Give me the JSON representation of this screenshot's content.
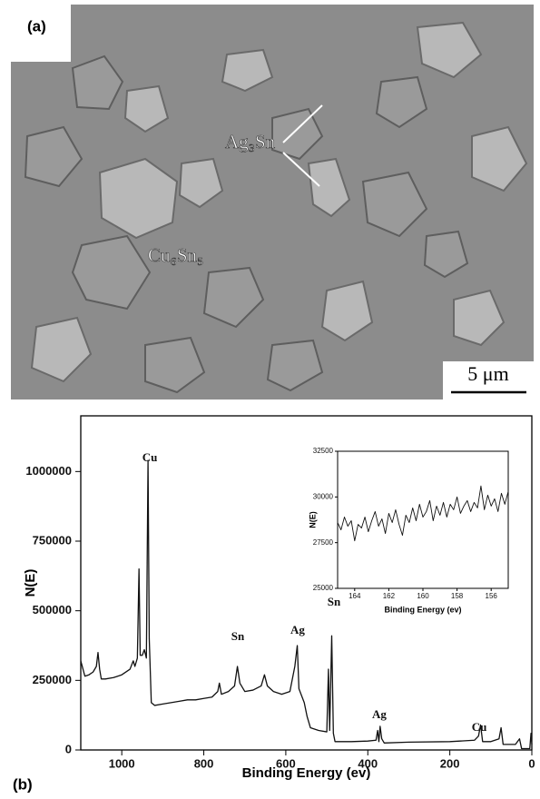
{
  "panel_a": {
    "label": "(a)",
    "annotations": [
      "Ag₃Sn",
      "Cu₆Sn₅"
    ],
    "scale_bar": "5 μm"
  },
  "panel_b": {
    "label": "(b)"
  },
  "chart_data": [
    {
      "type": "line",
      "xlabel": "Binding Energy (ev)",
      "ylabel": "N(E)",
      "xlim": [
        1100,
        0
      ],
      "ylim": [
        0,
        1200000
      ],
      "xticks": [
        1000,
        800,
        600,
        400,
        200,
        0
      ],
      "yticks": [
        0,
        250000,
        500000,
        750000,
        1000000
      ],
      "annotations": [
        "Cu",
        "Sn",
        "Ag",
        "Sn",
        "Ag",
        "Cu"
      ],
      "x": [
        1100,
        1090,
        1080,
        1070,
        1062,
        1058,
        1054,
        1050,
        1040,
        1020,
        1000,
        980,
        972,
        968,
        962,
        958,
        955,
        950,
        945,
        940,
        936,
        933,
        928,
        920,
        900,
        880,
        860,
        840,
        820,
        800,
        780,
        766,
        762,
        757,
        740,
        725,
        718,
        712,
        700,
        680,
        660,
        652,
        645,
        630,
        610,
        590,
        578,
        572,
        568,
        555,
        548,
        540,
        520,
        500,
        496,
        493,
        488,
        484,
        480,
        440,
        400,
        380,
        376,
        373,
        370,
        366,
        360,
        300,
        200,
        140,
        130,
        125,
        120,
        100,
        80,
        75,
        70,
        40,
        30,
        25,
        5,
        2,
        0
      ],
      "series": [
        {
          "name": "N(E)",
          "color": "#111111",
          "values": [
            320000,
            265000,
            270000,
            280000,
            300000,
            350000,
            290000,
            255000,
            255000,
            260000,
            270000,
            290000,
            320000,
            300000,
            330000,
            650000,
            340000,
            340000,
            360000,
            330000,
            1040000,
            400000,
            170000,
            160000,
            165000,
            170000,
            175000,
            180000,
            180000,
            185000,
            190000,
            210000,
            240000,
            200000,
            210000,
            230000,
            300000,
            240000,
            210000,
            215000,
            230000,
            270000,
            230000,
            210000,
            200000,
            210000,
            300000,
            375000,
            220000,
            170000,
            120000,
            80000,
            70000,
            65000,
            290000,
            70000,
            410000,
            60000,
            30000,
            30000,
            32000,
            35000,
            70000,
            30000,
            85000,
            40000,
            25000,
            28000,
            30000,
            35000,
            50000,
            90000,
            30000,
            30000,
            40000,
            80000,
            20000,
            20000,
            40000,
            5000,
            5000,
            60000,
            20000
          ]
        }
      ]
    },
    {
      "type": "line",
      "xlabel": "Binding Energy (ev)",
      "ylabel": "N(E)",
      "xlim": [
        165,
        155
      ],
      "ylim": [
        25000,
        32500
      ],
      "xticks": [
        164,
        162,
        160,
        158,
        156
      ],
      "yticks": [
        25000,
        27500,
        30000,
        32500
      ],
      "x": [
        165,
        164.8,
        164.6,
        164.4,
        164.2,
        164,
        163.8,
        163.6,
        163.4,
        163.2,
        163,
        162.8,
        162.6,
        162.4,
        162.2,
        162,
        161.8,
        161.6,
        161.4,
        161.2,
        161,
        160.8,
        160.6,
        160.4,
        160.2,
        160,
        159.8,
        159.6,
        159.4,
        159.2,
        159,
        158.8,
        158.6,
        158.4,
        158.2,
        158,
        157.8,
        157.6,
        157.4,
        157.2,
        157,
        156.8,
        156.6,
        156.4,
        156.2,
        156,
        155.8,
        155.6,
        155.4,
        155.2,
        155
      ],
      "series": [
        {
          "name": "N(E)",
          "color": "#111111",
          "values": [
            28600,
            28200,
            28900,
            28400,
            28700,
            27600,
            28500,
            28300,
            28900,
            28100,
            28700,
            29200,
            28400,
            28800,
            28000,
            29100,
            28600,
            29300,
            28500,
            27900,
            29000,
            28600,
            29400,
            28700,
            29600,
            28900,
            29200,
            29800,
            28700,
            29500,
            29000,
            29700,
            28900,
            29600,
            29300,
            30000,
            29100,
            29500,
            29800,
            29200,
            29700,
            29400,
            30600,
            29300,
            30100,
            29500,
            29900,
            29200,
            30200,
            29600,
            30300
          ]
        }
      ]
    }
  ]
}
